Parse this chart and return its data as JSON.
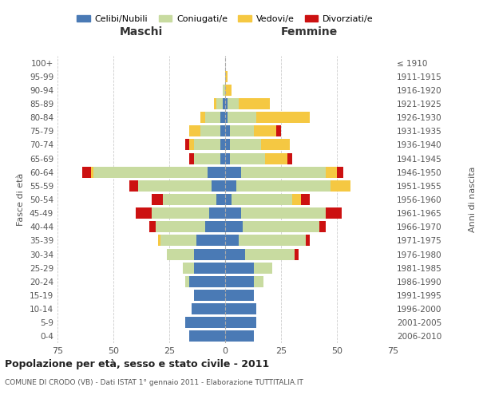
{
  "age_groups": [
    "0-4",
    "5-9",
    "10-14",
    "15-19",
    "20-24",
    "25-29",
    "30-34",
    "35-39",
    "40-44",
    "45-49",
    "50-54",
    "55-59",
    "60-64",
    "65-69",
    "70-74",
    "75-79",
    "80-84",
    "85-89",
    "90-94",
    "95-99",
    "100+"
  ],
  "birth_years": [
    "2006-2010",
    "2001-2005",
    "1996-2000",
    "1991-1995",
    "1986-1990",
    "1981-1985",
    "1976-1980",
    "1971-1975",
    "1966-1970",
    "1961-1965",
    "1956-1960",
    "1951-1955",
    "1946-1950",
    "1941-1945",
    "1936-1940",
    "1931-1935",
    "1926-1930",
    "1921-1925",
    "1916-1920",
    "1911-1915",
    "≤ 1910"
  ],
  "colors": {
    "celibi": "#4a7ab5",
    "coniugati": "#c8dba0",
    "vedovi": "#f5c842",
    "divorziati": "#cc1111"
  },
  "maschi": {
    "celibi": [
      16,
      18,
      15,
      14,
      16,
      14,
      14,
      13,
      9,
      7,
      4,
      6,
      8,
      2,
      2,
      2,
      2,
      1,
      0,
      0,
      0
    ],
    "coniugati": [
      0,
      0,
      0,
      0,
      2,
      5,
      12,
      16,
      22,
      26,
      24,
      33,
      51,
      12,
      12,
      9,
      7,
      3,
      1,
      0,
      0
    ],
    "vedovi": [
      0,
      0,
      0,
      0,
      0,
      0,
      0,
      1,
      0,
      0,
      0,
      0,
      1,
      0,
      2,
      5,
      2,
      1,
      0,
      0,
      0
    ],
    "divorziati": [
      0,
      0,
      0,
      0,
      0,
      0,
      0,
      0,
      3,
      7,
      5,
      4,
      4,
      2,
      2,
      0,
      0,
      0,
      0,
      0,
      0
    ]
  },
  "femmine": {
    "celibi": [
      13,
      14,
      14,
      13,
      13,
      13,
      9,
      6,
      8,
      7,
      3,
      5,
      7,
      2,
      2,
      2,
      1,
      1,
      0,
      0,
      0
    ],
    "coniugati": [
      0,
      0,
      0,
      0,
      4,
      8,
      22,
      30,
      34,
      38,
      27,
      42,
      38,
      16,
      14,
      11,
      13,
      5,
      0,
      0,
      0
    ],
    "vedovi": [
      0,
      0,
      0,
      0,
      0,
      0,
      0,
      0,
      0,
      0,
      4,
      9,
      5,
      10,
      13,
      10,
      24,
      14,
      3,
      1,
      0
    ],
    "divorziati": [
      0,
      0,
      0,
      0,
      0,
      0,
      2,
      2,
      3,
      7,
      4,
      0,
      3,
      2,
      0,
      2,
      0,
      0,
      0,
      0,
      0
    ]
  },
  "xlim": 75,
  "title": "Popolazione per età, sesso e stato civile - 2011",
  "subtitle": "COMUNE DI CRODO (VB) - Dati ISTAT 1° gennaio 2011 - Elaborazione TUTTITALIA.IT",
  "xlabel_left": "Maschi",
  "xlabel_right": "Femmine",
  "ylabel": "Fasce di età",
  "ylabel_right": "Anni di nascita"
}
